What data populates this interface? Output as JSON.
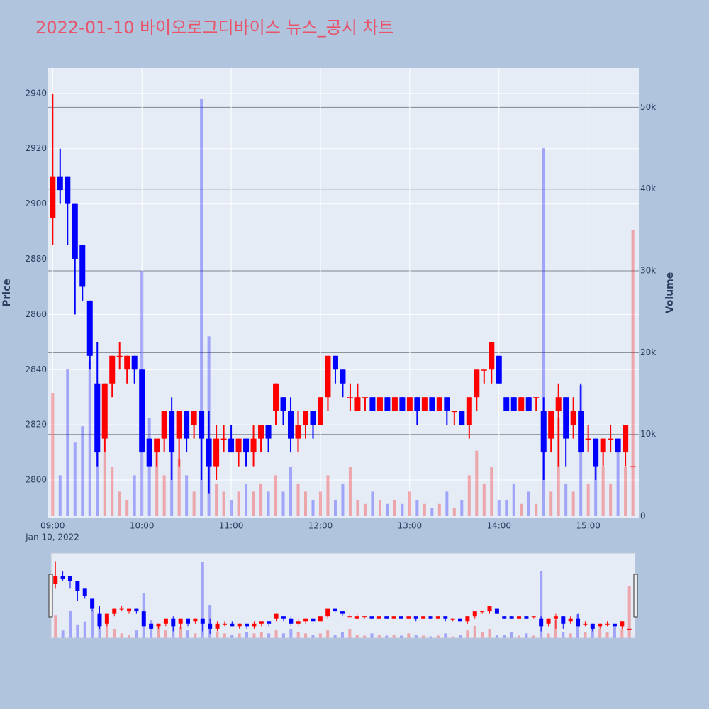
{
  "chart_data": {
    "type": "candlestick",
    "title": "2022-01-10 바이오로그디바이스 뉴스_공시 차트",
    "y_title": "Price",
    "y2_title": "Volume",
    "x_date_label": "Jan 10, 2022",
    "increasing_color": "#ff0000",
    "decreasing_color": "#0000ff",
    "xlim": [
      "2022-01-10 08:57",
      "2022-01-10 15:34"
    ],
    "xticks": [
      {
        "value": "2022-01-10 09:00",
        "label": "09:00"
      },
      {
        "value": "2022-01-10 10:00",
        "label": "10:00"
      },
      {
        "value": "2022-01-10 11:00",
        "label": "11:00"
      },
      {
        "value": "2022-01-10 12:00",
        "label": "12:00"
      },
      {
        "value": "2022-01-10 13:00",
        "label": "13:00"
      },
      {
        "value": "2022-01-10 14:00",
        "label": "14:00"
      },
      {
        "value": "2022-01-10 15:00",
        "label": "15:00"
      }
    ],
    "ylim": [
      2786.4,
      2949.2
    ],
    "yticks": [
      2800,
      2820,
      2840,
      2860,
      2880,
      2900,
      2920,
      2940
    ],
    "y2lim": [
      -170,
      54800
    ],
    "y2ticks": [
      0,
      {
        "value": 10000,
        "label": "10k"
      },
      {
        "value": 20000,
        "label": "20k"
      },
      {
        "value": 30000,
        "label": "30k"
      },
      {
        "value": 40000,
        "label": "40k"
      },
      {
        "value": 50000,
        "label": "50k"
      }
    ],
    "grid": true,
    "x": [
      "2022-01-10 09:00",
      "2022-01-10 09:05",
      "2022-01-10 09:10",
      "2022-01-10 09:15",
      "2022-01-10 09:20",
      "2022-01-10 09:25",
      "2022-01-10 09:30",
      "2022-01-10 09:35",
      "2022-01-10 09:40",
      "2022-01-10 09:45",
      "2022-01-10 09:50",
      "2022-01-10 09:55",
      "2022-01-10 10:00",
      "2022-01-10 10:05",
      "2022-01-10 10:10",
      "2022-01-10 10:15",
      "2022-01-10 10:20",
      "2022-01-10 10:25",
      "2022-01-10 10:30",
      "2022-01-10 10:35",
      "2022-01-10 10:40",
      "2022-01-10 10:45",
      "2022-01-10 10:50",
      "2022-01-10 10:55",
      "2022-01-10 11:00",
      "2022-01-10 11:05",
      "2022-01-10 11:10",
      "2022-01-10 11:15",
      "2022-01-10 11:20",
      "2022-01-10 11:25",
      "2022-01-10 11:30",
      "2022-01-10 11:35",
      "2022-01-10 11:40",
      "2022-01-10 11:45",
      "2022-01-10 11:50",
      "2022-01-10 11:55",
      "2022-01-10 12:00",
      "2022-01-10 12:05",
      "2022-01-10 12:10",
      "2022-01-10 12:15",
      "2022-01-10 12:20",
      "2022-01-10 12:25",
      "2022-01-10 12:30",
      "2022-01-10 12:35",
      "2022-01-10 12:40",
      "2022-01-10 12:45",
      "2022-01-10 12:50",
      "2022-01-10 12:55",
      "2022-01-10 13:00",
      "2022-01-10 13:05",
      "2022-01-10 13:10",
      "2022-01-10 13:15",
      "2022-01-10 13:20",
      "2022-01-10 13:25",
      "2022-01-10 13:30",
      "2022-01-10 13:35",
      "2022-01-10 13:40",
      "2022-01-10 13:45",
      "2022-01-10 13:50",
      "2022-01-10 13:55",
      "2022-01-10 14:00",
      "2022-01-10 14:05",
      "2022-01-10 14:10",
      "2022-01-10 14:15",
      "2022-01-10 14:20",
      "2022-01-10 14:25",
      "2022-01-10 14:30",
      "2022-01-10 14:35",
      "2022-01-10 14:40",
      "2022-01-10 14:45",
      "2022-01-10 14:50",
      "2022-01-10 14:55",
      "2022-01-10 15:00",
      "2022-01-10 15:05",
      "2022-01-10 15:10",
      "2022-01-10 15:15",
      "2022-01-10 15:20",
      "2022-01-10 15:25",
      "2022-01-10 15:30"
    ],
    "open": [
      2895,
      2910,
      2910,
      2900,
      2885,
      2865,
      2835,
      2815,
      2835,
      2845,
      2840,
      2845,
      2840,
      2815,
      2810,
      2815,
      2825,
      2815,
      2825,
      2820,
      2825,
      2815,
      2805,
      2815,
      2815,
      2810,
      2815,
      2810,
      2815,
      2820,
      2825,
      2830,
      2825,
      2815,
      2820,
      2825,
      2820,
      2830,
      2845,
      2840,
      2830,
      2825,
      2830,
      2830,
      2825,
      2830,
      2825,
      2830,
      2825,
      2830,
      2825,
      2830,
      2825,
      2830,
      2825,
      2825,
      2820,
      2830,
      2840,
      2840,
      2845,
      2830,
      2830,
      2825,
      2830,
      2830,
      2825,
      2815,
      2825,
      2830,
      2820,
      2825,
      2815,
      2815,
      2810,
      2815,
      2815,
      2810,
      2805
    ],
    "high": [
      2940,
      2920,
      2910,
      2900,
      2885,
      2865,
      2850,
      2835,
      2845,
      2850,
      2845,
      2845,
      2840,
      2815,
      2815,
      2825,
      2830,
      2825,
      2825,
      2825,
      2825,
      2825,
      2820,
      2820,
      2820,
      2815,
      2815,
      2820,
      2820,
      2820,
      2835,
      2830,
      2830,
      2825,
      2825,
      2825,
      2830,
      2845,
      2845,
      2840,
      2835,
      2835,
      2830,
      2830,
      2830,
      2830,
      2830,
      2830,
      2830,
      2830,
      2830,
      2830,
      2830,
      2830,
      2825,
      2825,
      2830,
      2840,
      2840,
      2850,
      2845,
      2830,
      2830,
      2830,
      2830,
      2830,
      2830,
      2825,
      2835,
      2830,
      2830,
      2835,
      2820,
      2815,
      2815,
      2820,
      2815,
      2820,
      2805
    ],
    "low": [
      2885,
      2900,
      2885,
      2860,
      2865,
      2840,
      2805,
      2810,
      2830,
      2840,
      2835,
      2835,
      2810,
      2805,
      2805,
      2810,
      2800,
      2805,
      2810,
      2815,
      2800,
      2795,
      2800,
      2810,
      2810,
      2805,
      2805,
      2805,
      2810,
      2810,
      2820,
      2820,
      2810,
      2810,
      2815,
      2815,
      2820,
      2825,
      2835,
      2830,
      2825,
      2825,
      2825,
      2825,
      2825,
      2825,
      2825,
      2825,
      2825,
      2820,
      2825,
      2825,
      2825,
      2820,
      2820,
      2820,
      2815,
      2825,
      2835,
      2835,
      2835,
      2825,
      2825,
      2825,
      2825,
      2825,
      2800,
      2810,
      2805,
      2805,
      2815,
      2810,
      2810,
      2800,
      2805,
      2810,
      2810,
      2805,
      2805
    ],
    "close": [
      2910,
      2905,
      2900,
      2880,
      2870,
      2845,
      2810,
      2835,
      2845,
      2845,
      2845,
      2840,
      2810,
      2805,
      2815,
      2825,
      2810,
      2825,
      2815,
      2825,
      2815,
      2805,
      2815,
      2815,
      2810,
      2815,
      2810,
      2815,
      2820,
      2815,
      2835,
      2825,
      2815,
      2820,
      2825,
      2820,
      2830,
      2845,
      2840,
      2835,
      2830,
      2830,
      2830,
      2825,
      2830,
      2825,
      2830,
      2825,
      2830,
      2825,
      2830,
      2825,
      2830,
      2825,
      2825,
      2820,
      2830,
      2840,
      2840,
      2850,
      2835,
      2825,
      2825,
      2830,
      2825,
      2830,
      2810,
      2825,
      2830,
      2815,
      2825,
      2810,
      2815,
      2805,
      2815,
      2815,
      2810,
      2820,
      2805
    ],
    "volume": [
      15000,
      5000,
      18000,
      9000,
      11000,
      19000,
      16000,
      10000,
      6000,
      3000,
      2000,
      5000,
      30000,
      12000,
      8000,
      5000,
      10000,
      7000,
      5000,
      3000,
      51000,
      22000,
      4000,
      3000,
      2000,
      3000,
      4000,
      3000,
      4000,
      3000,
      5000,
      3000,
      6000,
      4000,
      3000,
      2000,
      3000,
      5000,
      2000,
      4000,
      6000,
      2000,
      1500,
      3000,
      2000,
      1500,
      2000,
      1500,
      3000,
      2000,
      1500,
      1000,
      1500,
      3000,
      1000,
      2000,
      5000,
      8000,
      4000,
      6000,
      2000,
      2000,
      4000,
      1500,
      3000,
      1500,
      45000,
      3000,
      12000,
      4000,
      3000,
      16000,
      4000,
      9000,
      6000,
      4000,
      8000,
      6000,
      35000
    ]
  }
}
